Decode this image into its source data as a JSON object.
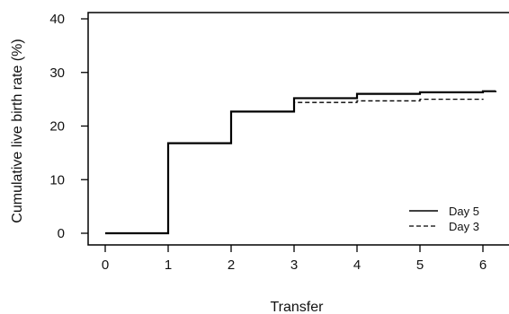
{
  "chart_data": {
    "type": "line",
    "step": true,
    "xlabel": "Transfer",
    "ylabel": "Cumulative live birth rate (%)",
    "xlim": [
      0,
      6.2
    ],
    "ylim": [
      0,
      40
    ],
    "x_ticks": [
      0,
      1,
      2,
      3,
      4,
      5,
      6
    ],
    "y_ticks": [
      0,
      10,
      20,
      30,
      40
    ],
    "grid": false,
    "legend_position": "bottom-right",
    "series": [
      {
        "name": "Day 5",
        "line_style": "solid",
        "color": "#000000",
        "x": [
          0,
          1,
          2,
          3,
          4,
          5,
          6,
          6.2
        ],
        "y": [
          0,
          16.8,
          22.7,
          25.2,
          26.0,
          26.3,
          26.5,
          26.6
        ]
      },
      {
        "name": "Day 3",
        "line_style": "dashed",
        "color": "#000000",
        "x": [
          0,
          1,
          2,
          3,
          4,
          5,
          6
        ],
        "y": [
          0,
          16.8,
          22.7,
          24.4,
          24.7,
          25.0,
          25.1
        ]
      }
    ]
  }
}
